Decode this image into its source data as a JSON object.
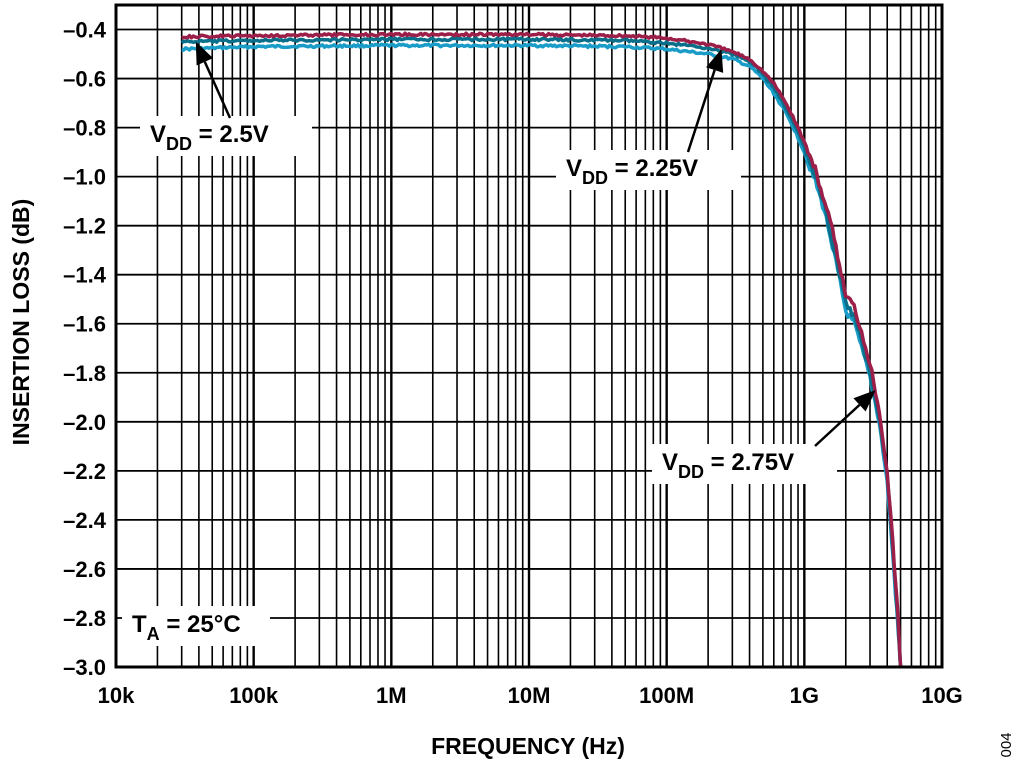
{
  "chart_data": {
    "type": "line",
    "xlabel": "FREQUENCY (Hz)",
    "ylabel": "INSERTION LOSS (dB)",
    "x_scale": "log",
    "xlim": [
      10000,
      10000000000
    ],
    "ylim": [
      -3.0,
      -0.3
    ],
    "grid": true,
    "x_ticks": [
      {
        "value": 10000,
        "label": "10k"
      },
      {
        "value": 100000,
        "label": "100k"
      },
      {
        "value": 1000000,
        "label": "1M"
      },
      {
        "value": 10000000,
        "label": "10M"
      },
      {
        "value": 100000000,
        "label": "100M"
      },
      {
        "value": 1000000000,
        "label": "1G"
      },
      {
        "value": 10000000000,
        "label": "10G"
      }
    ],
    "y_ticks": [
      {
        "value": -0.4,
        "label": "–0.4"
      },
      {
        "value": -0.6,
        "label": "–0.6"
      },
      {
        "value": -0.8,
        "label": "–0.8"
      },
      {
        "value": -1.0,
        "label": "–1.0"
      },
      {
        "value": -1.2,
        "label": "–1.2"
      },
      {
        "value": -1.4,
        "label": "–1.4"
      },
      {
        "value": -1.6,
        "label": "–1.6"
      },
      {
        "value": -1.8,
        "label": "–1.8"
      },
      {
        "value": -2.0,
        "label": "–2.0"
      },
      {
        "value": -2.2,
        "label": "–2.2"
      },
      {
        "value": -2.4,
        "label": "–2.4"
      },
      {
        "value": -2.6,
        "label": "–2.6"
      },
      {
        "value": -2.8,
        "label": "–2.8"
      },
      {
        "value": -3.0,
        "label": "–3.0"
      }
    ],
    "series": [
      {
        "name": "VDD = 2.25V",
        "color": "#1a9cc8",
        "points": [
          [
            30000,
            -0.48
          ],
          [
            100000,
            -0.47
          ],
          [
            1000000,
            -0.465
          ],
          [
            10000000,
            -0.465
          ],
          [
            50000000,
            -0.47
          ],
          [
            100000000,
            -0.48
          ],
          [
            200000000,
            -0.5
          ],
          [
            300000000,
            -0.52
          ],
          [
            400000000,
            -0.55
          ],
          [
            500000000,
            -0.6
          ],
          [
            600000000,
            -0.66
          ],
          [
            700000000,
            -0.72
          ],
          [
            800000000,
            -0.78
          ],
          [
            900000000,
            -0.84
          ],
          [
            1000000000,
            -0.9
          ],
          [
            1200000000,
            -1.02
          ],
          [
            1400000000,
            -1.14
          ],
          [
            1600000000,
            -1.28
          ],
          [
            1800000000,
            -1.42
          ],
          [
            2000000000,
            -1.55
          ],
          [
            2300000000,
            -1.6
          ],
          [
            2600000000,
            -1.7
          ],
          [
            3000000000,
            -1.82
          ],
          [
            3500000000,
            -2.0
          ],
          [
            4000000000,
            -2.25
          ],
          [
            4400000000,
            -2.55
          ],
          [
            4800000000,
            -2.85
          ],
          [
            5000000000,
            -3.0
          ]
        ]
      },
      {
        "name": "VDD = 2.5V",
        "color": "#0a6f8a",
        "points": [
          [
            30000,
            -0.45
          ],
          [
            100000,
            -0.445
          ],
          [
            1000000,
            -0.44
          ],
          [
            10000000,
            -0.44
          ],
          [
            50000000,
            -0.445
          ],
          [
            100000000,
            -0.455
          ],
          [
            200000000,
            -0.475
          ],
          [
            300000000,
            -0.5
          ],
          [
            400000000,
            -0.53
          ],
          [
            500000000,
            -0.58
          ],
          [
            600000000,
            -0.64
          ],
          [
            700000000,
            -0.7
          ],
          [
            800000000,
            -0.76
          ],
          [
            900000000,
            -0.82
          ],
          [
            1000000000,
            -0.88
          ],
          [
            1200000000,
            -1.0
          ],
          [
            1400000000,
            -1.12
          ],
          [
            1600000000,
            -1.26
          ],
          [
            1800000000,
            -1.4
          ],
          [
            2000000000,
            -1.52
          ],
          [
            2300000000,
            -1.57
          ],
          [
            2600000000,
            -1.67
          ],
          [
            3000000000,
            -1.8
          ],
          [
            3500000000,
            -1.98
          ],
          [
            4000000000,
            -2.22
          ],
          [
            4400000000,
            -2.52
          ],
          [
            4800000000,
            -2.82
          ],
          [
            5000000000,
            -3.0
          ]
        ]
      },
      {
        "name": "VDD = 2.75V",
        "color": "#9c1f4a",
        "points": [
          [
            30000,
            -0.43
          ],
          [
            100000,
            -0.425
          ],
          [
            1000000,
            -0.42
          ],
          [
            10000000,
            -0.42
          ],
          [
            50000000,
            -0.425
          ],
          [
            100000000,
            -0.435
          ],
          [
            200000000,
            -0.46
          ],
          [
            300000000,
            -0.49
          ],
          [
            400000000,
            -0.52
          ],
          [
            500000000,
            -0.57
          ],
          [
            600000000,
            -0.62
          ],
          [
            700000000,
            -0.68
          ],
          [
            800000000,
            -0.74
          ],
          [
            900000000,
            -0.8
          ],
          [
            1000000000,
            -0.86
          ],
          [
            1200000000,
            -0.97
          ],
          [
            1400000000,
            -1.1
          ],
          [
            1600000000,
            -1.22
          ],
          [
            1800000000,
            -1.36
          ],
          [
            2000000000,
            -1.48
          ],
          [
            2300000000,
            -1.53
          ],
          [
            2600000000,
            -1.63
          ],
          [
            3000000000,
            -1.76
          ],
          [
            3500000000,
            -1.95
          ],
          [
            4000000000,
            -2.2
          ],
          [
            4400000000,
            -2.5
          ],
          [
            4800000000,
            -2.8
          ],
          [
            5000000000,
            -3.0
          ]
        ]
      }
    ],
    "annotations": [
      {
        "main": "V",
        "sub": "DD",
        "rest": " = 2.5V",
        "arrow_to": [
          38000,
          -0.45
        ]
      },
      {
        "main": "V",
        "sub": "DD",
        "rest": " = 2.25V",
        "arrow_to": [
          250000000,
          -0.48
        ]
      },
      {
        "main": "V",
        "sub": "DD",
        "rest": " = 2.75V",
        "arrow_to": [
          3300000000,
          -1.87
        ]
      },
      {
        "main": "T",
        "sub": "A",
        "rest": " = 25°C"
      }
    ],
    "figure_id": "004"
  }
}
